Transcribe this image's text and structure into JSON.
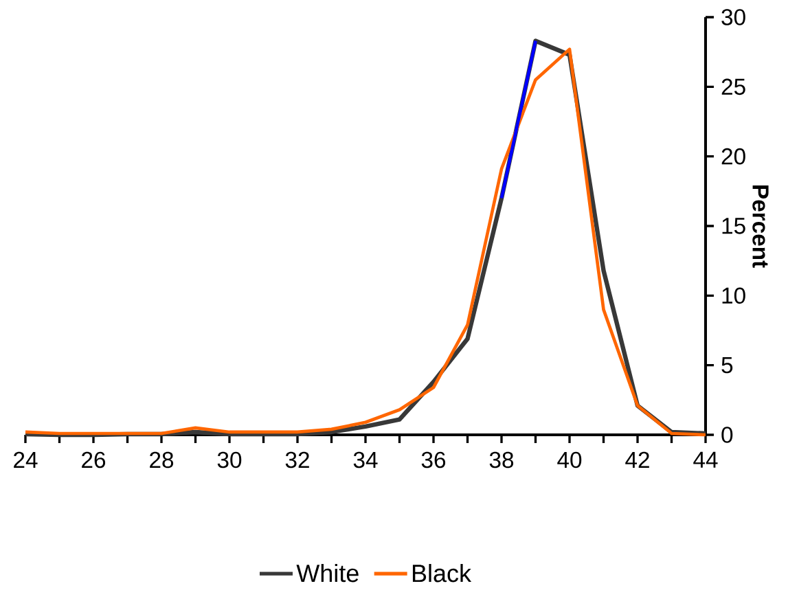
{
  "chart_data": {
    "type": "line",
    "ylabel": "Percent",
    "x": [
      24,
      25,
      26,
      27,
      28,
      29,
      30,
      31,
      32,
      33,
      34,
      35,
      36,
      37,
      38,
      39,
      40,
      41,
      42,
      43,
      44
    ],
    "series": [
      {
        "name": "White",
        "color": "#383838",
        "values": [
          0.05,
          0,
          0,
          0.05,
          0.05,
          0.2,
          0.05,
          0.05,
          0.05,
          0.2,
          0.6,
          1.1,
          3.8,
          6.9,
          17,
          28.3,
          27.3,
          11.8,
          2.1,
          0.2,
          0.1
        ]
      },
      {
        "name": "Black",
        "color": "#ff6600",
        "values": [
          0.2,
          0.1,
          0.1,
          0.1,
          0.1,
          0.5,
          0.2,
          0.2,
          0.2,
          0.4,
          0.9,
          1.8,
          3.4,
          7.9,
          19.1,
          25.5,
          27.7,
          9,
          2.1,
          0.1,
          0
        ]
      },
      {
        "color": "#0000ff",
        "values": [
          null,
          null,
          null,
          null,
          null,
          null,
          null,
          null,
          null,
          null,
          null,
          null,
          null,
          null,
          17,
          28.3,
          null,
          null,
          null,
          null,
          null
        ]
      }
    ],
    "xlim": [
      24,
      44
    ],
    "xticks": [
      24,
      {
        "value": 25,
        "label": null
      },
      26,
      {
        "value": 27,
        "label": null
      },
      28,
      {
        "value": 29,
        "label": null
      },
      30,
      {
        "value": 31,
        "label": null
      },
      32,
      {
        "value": 33,
        "label": null
      },
      34,
      {
        "value": 35,
        "label": null
      },
      36,
      {
        "value": 37,
        "label": null
      },
      38,
      {
        "value": 39,
        "label": null
      },
      40,
      {
        "value": 41,
        "label": null
      },
      42,
      {
        "value": 43,
        "label": null
      },
      44
    ],
    "ylim": [
      0,
      30
    ],
    "yticks": [
      0,
      5,
      10,
      15,
      20,
      25,
      30
    ],
    "grid": false,
    "legend": "bottom",
    "marker": "none",
    "line_style": "solid"
  }
}
